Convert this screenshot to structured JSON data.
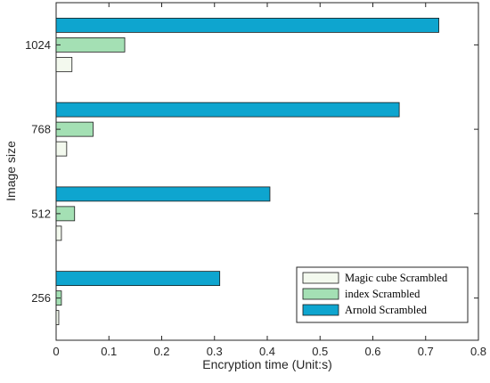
{
  "chart_data": {
    "type": "bar",
    "orientation": "horizontal",
    "categories": [
      "256",
      "512",
      "768",
      "1024"
    ],
    "series": [
      {
        "name": "Magic cube Scrambled",
        "values": [
          0.005,
          0.01,
          0.02,
          0.03
        ],
        "color": "#f3f9ee"
      },
      {
        "name": "index Scrambled",
        "values": [
          0.01,
          0.035,
          0.07,
          0.13
        ],
        "color": "#a4e0b4"
      },
      {
        "name": "Arnold Scrambled",
        "values": [
          0.31,
          0.405,
          0.65,
          0.725
        ],
        "color": "#0ea5cf"
      }
    ],
    "xlabel": "Encryption time (Unit:s)",
    "ylabel": "Image size",
    "xlim": [
      0,
      0.8
    ],
    "xticks": [
      "0",
      "0.1",
      "0.2",
      "0.3",
      "0.4",
      "0.5",
      "0.6",
      "0.7",
      "0.8"
    ],
    "grid": false,
    "legend_position": "bottom-right"
  }
}
